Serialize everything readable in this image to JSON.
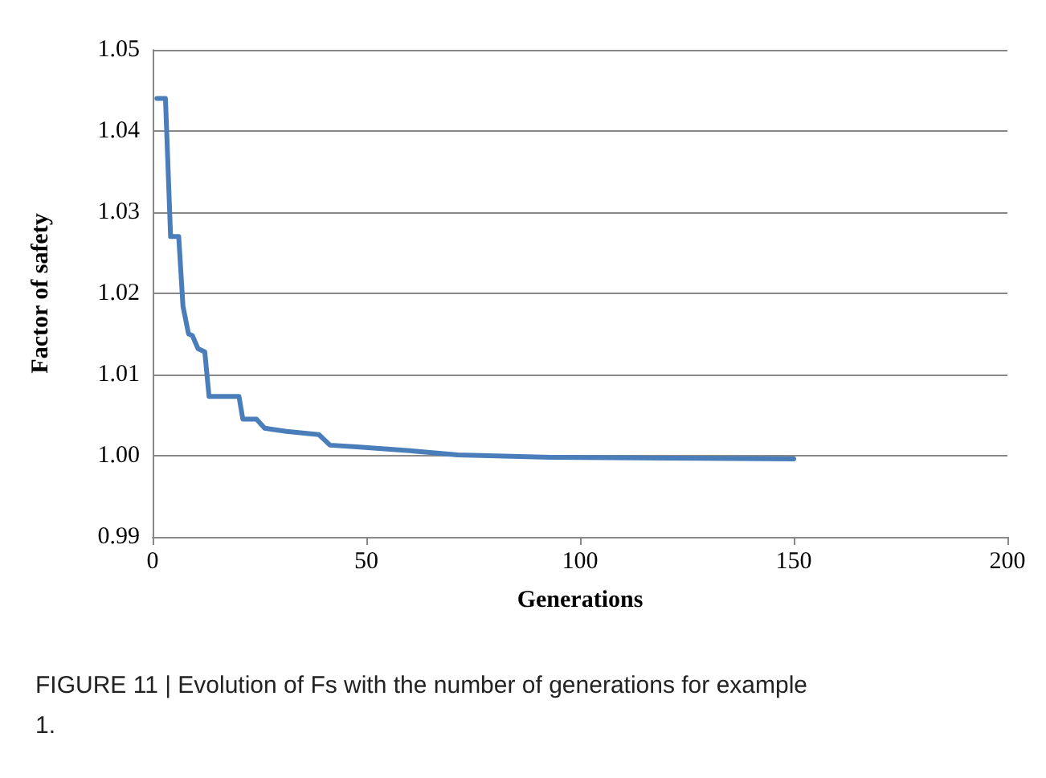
{
  "chart_data": {
    "type": "line",
    "xlabel": "Generations",
    "ylabel": "Factor of safety",
    "annotations": [
      "FIGURE 11 | Evolution of Fs with the number of generations for example 1."
    ],
    "x": [
      1,
      3,
      4.2,
      6.1,
      7.1,
      8.4,
      9.3,
      10.6,
      12.2,
      13.2,
      20.2,
      21.1,
      24.3,
      26.2,
      28.7,
      31.3,
      35.1,
      38.9,
      41.5,
      47.8,
      60.6,
      71.4,
      93,
      150
    ],
    "series": [
      {
        "color": "#4a7ebb",
        "values": [
          1.044,
          1.044,
          1.027,
          1.027,
          1.0184,
          1.015,
          1.0148,
          1.0132,
          1.0128,
          1.0073,
          1.0073,
          1.0045,
          1.0045,
          1.0034,
          1.0032,
          1.003,
          1.0028,
          1.0026,
          1.0013,
          1.0011,
          1.0006,
          1.0001,
          0.9998,
          0.9996
        ]
      }
    ],
    "xlim": [
      0,
      200
    ],
    "xticks": [
      0,
      50,
      100,
      150,
      200
    ],
    "ylim": [
      0.99,
      1.05
    ],
    "yticks": [
      {
        "value": 0.99,
        "label": "0.99"
      },
      {
        "value": 1.0,
        "label": "1.00"
      },
      {
        "value": 1.01,
        "label": "1.01"
      },
      {
        "value": 1.02,
        "label": "1.02"
      },
      {
        "value": 1.03,
        "label": "1.03"
      },
      {
        "value": 1.04,
        "label": "1.04"
      },
      {
        "value": 1.05,
        "label": "1.05"
      }
    ],
    "grid": "y",
    "marker": "none",
    "line_style": "solid"
  }
}
